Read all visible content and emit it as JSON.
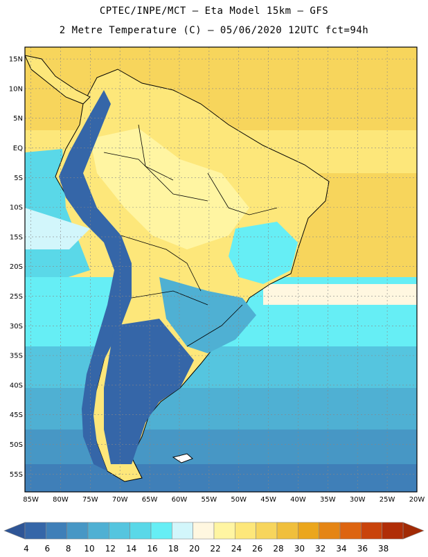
{
  "title_line1": "CPTEC/INPE/MCT –  Eta Model 15km – GFS",
  "title_line2": "2 Metre Temperature (C) – 05/06/2020 12UTC fct=94h",
  "lat_labels": [
    "15N",
    "10N",
    "5N",
    "EQ",
    "5S",
    "10S",
    "15S",
    "20S",
    "25S",
    "30S",
    "35S",
    "40S",
    "45S",
    "50S",
    "55S"
  ],
  "lon_labels": [
    "85W",
    "80W",
    "75W",
    "70W",
    "65W",
    "60W",
    "55W",
    "50W",
    "45W",
    "40W",
    "35W",
    "30W",
    "25W",
    "20W"
  ],
  "colorbar": {
    "ticks": [
      "4",
      "6",
      "8",
      "10",
      "12",
      "14",
      "16",
      "18",
      "20",
      "22",
      "24",
      "26",
      "28",
      "30",
      "32",
      "34",
      "36",
      "38"
    ],
    "colors": [
      "#3566a8",
      "#3f7fb8",
      "#4797c5",
      "#4fb0d3",
      "#55c5df",
      "#5ad8e8",
      "#66eef5",
      "#d2f6fb",
      "#fff7e0",
      "#fff5a2",
      "#fde77a",
      "#f7d55c",
      "#f0bf3c",
      "#eba61c",
      "#e58514",
      "#dd6410",
      "#c9430b",
      "#b02d07"
    ]
  },
  "chart_data": {
    "type": "heatmap",
    "variable": "2 Metre Temperature",
    "units": "C",
    "model": "Eta Model 15km - GFS",
    "init_time": "05/06/2020 12UTC",
    "forecast_hour": "94h",
    "lat_range": [
      -58,
      17
    ],
    "lon_range": [
      -86,
      -20
    ],
    "scale_range": [
      4,
      38
    ],
    "grid": true
  }
}
